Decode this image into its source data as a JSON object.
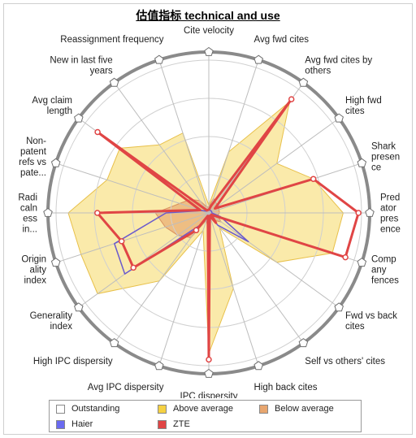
{
  "chart_data": {
    "type": "radar",
    "title": "估值指标 technical and use",
    "axes": [
      "Cite velocity",
      "Avg fwd cites",
      "Avg fwd cites by others",
      "High fwd cites",
      "Shark presence",
      "Predator presence",
      "Company fences",
      "Fwd vs back cites",
      "Self vs others' cites",
      "High back cites",
      "IPC dispersity",
      "Avg IPC dispersity",
      "High IPC dispersity",
      "Generality index",
      "Originality index",
      "Radicalness in...",
      "Non-patent refs vs pate...",
      "Avg claim length",
      "New in last five years",
      "Reassignment frequency"
    ],
    "bands": [
      {
        "name": "Outstanding",
        "color": "#ffffff"
      },
      {
        "name": "Above average",
        "color": "#f5d142",
        "values": [
          0.05,
          0.42,
          0.9,
          0.55,
          0.72,
          0.88,
          0.85,
          0.55,
          0.12,
          0.52,
          0.92,
          0.12,
          0.55,
          0.9,
          0.88,
          0.92,
          0.7,
          0.72,
          0.55,
          0.55
        ]
      },
      {
        "name": "Below average",
        "color": "#e8a66f",
        "values": [
          0.04,
          0.1,
          0.08,
          0.08,
          0.07,
          0.07,
          0.06,
          0.1,
          0.06,
          0.03,
          0.15,
          0.05,
          0.2,
          0.25,
          0.3,
          0.35,
          0.2,
          0.15,
          0.1,
          0.04
        ]
      }
    ],
    "series": [
      {
        "name": "Haier",
        "color": "#6a5acd",
        "values": [
          0.02,
          0.02,
          0.02,
          0.02,
          0.02,
          0.02,
          0.08,
          0.32,
          0.1,
          0.02,
          0.02,
          0.02,
          0.1,
          0.68,
          0.65,
          0.28,
          0.05,
          0.02,
          0.02,
          0.02
        ]
      },
      {
        "name": "ZTE",
        "color": "#e04545",
        "values": [
          0.02,
          0.05,
          0.92,
          0.05,
          0.72,
          0.98,
          0.94,
          0.02,
          0.08,
          0.02,
          0.96,
          0.02,
          0.14,
          0.61,
          0.6,
          0.73,
          0.06,
          0.9,
          0.02,
          0.02
        ]
      }
    ],
    "rlim": [
      0,
      1
    ],
    "grid": true,
    "legend_position": "bottom"
  }
}
